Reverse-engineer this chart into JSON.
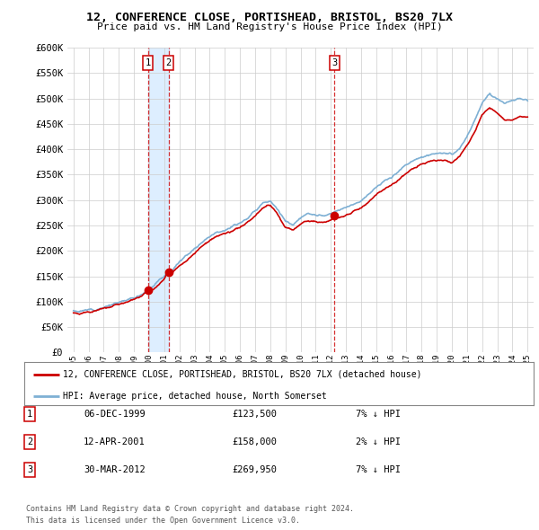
{
  "title": "12, CONFERENCE CLOSE, PORTISHEAD, BRISTOL, BS20 7LX",
  "subtitle": "Price paid vs. HM Land Registry's House Price Index (HPI)",
  "legend_label_red": "12, CONFERENCE CLOSE, PORTISHEAD, BRISTOL, BS20 7LX (detached house)",
  "legend_label_blue": "HPI: Average price, detached house, North Somerset",
  "footer_line1": "Contains HM Land Registry data © Crown copyright and database right 2024.",
  "footer_line2": "This data is licensed under the Open Government Licence v3.0.",
  "transactions": [
    {
      "num": 1,
      "date": "06-DEC-1999",
      "price": "£123,500",
      "hpi": "7% ↓ HPI"
    },
    {
      "num": 2,
      "date": "12-APR-2001",
      "price": "£158,000",
      "hpi": "2% ↓ HPI"
    },
    {
      "num": 3,
      "date": "30-MAR-2012",
      "price": "£269,950",
      "hpi": "7% ↓ HPI"
    }
  ],
  "transaction_years": [
    1999.92,
    2001.28,
    2012.24
  ],
  "transaction_prices": [
    123500,
    158000,
    269950
  ],
  "hpi_keypoints": [
    [
      1995.0,
      82000
    ],
    [
      1995.5,
      81000
    ],
    [
      1996.0,
      84000
    ],
    [
      1996.5,
      86000
    ],
    [
      1997.0,
      90000
    ],
    [
      1997.5,
      94000
    ],
    [
      1998.0,
      98000
    ],
    [
      1998.5,
      103000
    ],
    [
      1999.0,
      108000
    ],
    [
      1999.5,
      115000
    ],
    [
      2000.0,
      125000
    ],
    [
      2000.5,
      138000
    ],
    [
      2001.0,
      150000
    ],
    [
      2001.5,
      162000
    ],
    [
      2002.0,
      178000
    ],
    [
      2002.5,
      192000
    ],
    [
      2003.0,
      205000
    ],
    [
      2003.5,
      218000
    ],
    [
      2004.0,
      230000
    ],
    [
      2004.5,
      238000
    ],
    [
      2005.0,
      242000
    ],
    [
      2005.5,
      248000
    ],
    [
      2006.0,
      256000
    ],
    [
      2006.5,
      265000
    ],
    [
      2007.0,
      278000
    ],
    [
      2007.5,
      295000
    ],
    [
      2008.0,
      300000
    ],
    [
      2008.5,
      282000
    ],
    [
      2009.0,
      258000
    ],
    [
      2009.5,
      252000
    ],
    [
      2010.0,
      265000
    ],
    [
      2010.5,
      272000
    ],
    [
      2011.0,
      270000
    ],
    [
      2011.5,
      268000
    ],
    [
      2012.0,
      272000
    ],
    [
      2012.5,
      278000
    ],
    [
      2013.0,
      285000
    ],
    [
      2013.5,
      292000
    ],
    [
      2014.0,
      300000
    ],
    [
      2014.5,
      312000
    ],
    [
      2015.0,
      325000
    ],
    [
      2015.5,
      335000
    ],
    [
      2016.0,
      345000
    ],
    [
      2016.5,
      358000
    ],
    [
      2017.0,
      370000
    ],
    [
      2017.5,
      378000
    ],
    [
      2018.0,
      385000
    ],
    [
      2018.5,
      390000
    ],
    [
      2019.0,
      392000
    ],
    [
      2019.5,
      393000
    ],
    [
      2020.0,
      388000
    ],
    [
      2020.5,
      400000
    ],
    [
      2021.0,
      425000
    ],
    [
      2021.5,
      455000
    ],
    [
      2022.0,
      490000
    ],
    [
      2022.5,
      510000
    ],
    [
      2023.0,
      500000
    ],
    [
      2023.5,
      492000
    ],
    [
      2024.0,
      495000
    ],
    [
      2024.5,
      500000
    ],
    [
      2025.0,
      498000
    ]
  ],
  "red_keypoints": [
    [
      1995.0,
      78000
    ],
    [
      1995.5,
      77500
    ],
    [
      1996.0,
      80000
    ],
    [
      1996.5,
      82000
    ],
    [
      1997.0,
      86000
    ],
    [
      1997.5,
      90000
    ],
    [
      1998.0,
      94000
    ],
    [
      1998.5,
      99000
    ],
    [
      1999.0,
      104000
    ],
    [
      1999.5,
      110000
    ],
    [
      1999.92,
      123500
    ],
    [
      2000.0,
      118000
    ],
    [
      2000.5,
      130000
    ],
    [
      2001.0,
      143000
    ],
    [
      2001.28,
      158000
    ],
    [
      2001.5,
      155000
    ],
    [
      2002.0,
      170000
    ],
    [
      2002.5,
      183000
    ],
    [
      2003.0,
      196000
    ],
    [
      2003.5,
      209000
    ],
    [
      2004.0,
      220000
    ],
    [
      2004.5,
      228000
    ],
    [
      2005.0,
      232000
    ],
    [
      2005.5,
      238000
    ],
    [
      2006.0,
      246000
    ],
    [
      2006.5,
      255000
    ],
    [
      2007.0,
      268000
    ],
    [
      2007.5,
      285000
    ],
    [
      2008.0,
      290000
    ],
    [
      2008.5,
      272000
    ],
    [
      2009.0,
      245000
    ],
    [
      2009.5,
      240000
    ],
    [
      2010.0,
      252000
    ],
    [
      2010.5,
      260000
    ],
    [
      2011.0,
      258000
    ],
    [
      2011.5,
      256000
    ],
    [
      2012.0,
      260000
    ],
    [
      2012.24,
      269950
    ],
    [
      2012.5,
      265000
    ],
    [
      2013.0,
      270000
    ],
    [
      2013.5,
      278000
    ],
    [
      2014.0,
      285000
    ],
    [
      2014.5,
      298000
    ],
    [
      2015.0,
      310000
    ],
    [
      2015.5,
      320000
    ],
    [
      2016.0,
      330000
    ],
    [
      2016.5,
      342000
    ],
    [
      2017.0,
      354000
    ],
    [
      2017.5,
      362000
    ],
    [
      2018.0,
      370000
    ],
    [
      2018.5,
      375000
    ],
    [
      2019.0,
      378000
    ],
    [
      2019.5,
      378000
    ],
    [
      2020.0,
      373000
    ],
    [
      2020.5,
      385000
    ],
    [
      2021.0,
      408000
    ],
    [
      2021.5,
      435000
    ],
    [
      2022.0,
      468000
    ],
    [
      2022.5,
      482000
    ],
    [
      2023.0,
      472000
    ],
    [
      2023.5,
      460000
    ],
    [
      2024.0,
      458000
    ],
    [
      2024.5,
      465000
    ],
    [
      2025.0,
      462000
    ]
  ],
  "ylim": [
    0,
    600000
  ],
  "yticks": [
    0,
    50000,
    100000,
    150000,
    200000,
    250000,
    300000,
    350000,
    400000,
    450000,
    500000,
    550000,
    600000
  ],
  "xlim_left": 1994.6,
  "xlim_right": 2025.4,
  "red_color": "#cc0000",
  "blue_color": "#7eb0d4",
  "shade_color": "#ddeeff",
  "grid_color": "#cccccc",
  "background_color": "#ffffff"
}
